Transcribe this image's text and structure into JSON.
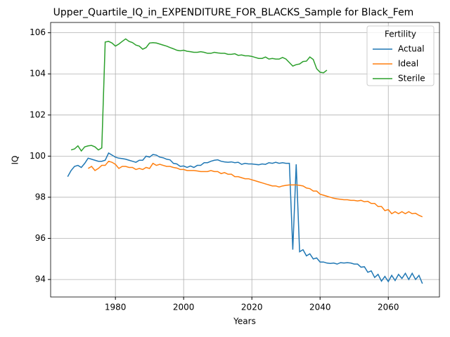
{
  "chart_data": {
    "type": "line",
    "title": "Upper_Quartile_IQ_in_EXPENDITURE_FOR_BLACKS_Sample for Black_Fem",
    "xlabel": "Years",
    "ylabel": "IQ",
    "xlim": [
      1961,
      2075
    ],
    "ylim": [
      93.15,
      106.5
    ],
    "xticks": [
      1980,
      2000,
      2020,
      2040,
      2060
    ],
    "yticks": [
      94,
      96,
      98,
      100,
      102,
      104,
      106
    ],
    "grid": true,
    "legend_title": "Fertility",
    "legend": "upper right",
    "series": [
      {
        "name": "Actual",
        "color": "#1f77b4",
        "x": [
          1966,
          1967,
          1968,
          1969,
          1970,
          1971,
          1972,
          1973,
          1974,
          1975,
          1976,
          1977,
          1978,
          1979,
          1980,
          1981,
          1982,
          1983,
          1984,
          1985,
          1986,
          1987,
          1988,
          1989,
          1990,
          1991,
          1992,
          1993,
          1994,
          1995,
          1996,
          1997,
          1998,
          1999,
          2000,
          2001,
          2002,
          2003,
          2004,
          2005,
          2006,
          2007,
          2008,
          2009,
          2010,
          2011,
          2012,
          2013,
          2014,
          2015,
          2016,
          2017,
          2018,
          2019,
          2020,
          2021,
          2022,
          2023,
          2024,
          2025,
          2026,
          2027,
          2028,
          2029,
          2030,
          2031,
          2032,
          2033,
          2034,
          2035,
          2036,
          2037,
          2038,
          2039,
          2040,
          2041,
          2042,
          2043,
          2044,
          2045,
          2046,
          2047,
          2048,
          2049,
          2050,
          2051,
          2052,
          2053,
          2054,
          2055,
          2056,
          2057,
          2058,
          2059,
          2060,
          2061,
          2062,
          2063,
          2064,
          2065,
          2066,
          2067,
          2068,
          2069,
          2070
        ],
        "values": [
          99.0,
          99.3,
          99.5,
          99.55,
          99.45,
          99.65,
          99.9,
          99.85,
          99.8,
          99.75,
          99.75,
          99.8,
          100.15,
          100.05,
          99.95,
          99.9,
          99.88,
          99.85,
          99.8,
          99.75,
          99.7,
          99.8,
          99.8,
          100.0,
          99.95,
          100.08,
          100.05,
          99.95,
          99.92,
          99.85,
          99.82,
          99.65,
          99.62,
          99.5,
          99.52,
          99.45,
          99.52,
          99.45,
          99.55,
          99.55,
          99.68,
          99.68,
          99.75,
          99.8,
          99.82,
          99.75,
          99.72,
          99.7,
          99.72,
          99.68,
          99.7,
          99.6,
          99.65,
          99.62,
          99.62,
          99.6,
          99.58,
          99.62,
          99.6,
          99.68,
          99.65,
          99.7,
          99.65,
          99.68,
          99.65,
          99.65,
          95.45,
          99.6,
          95.35,
          95.45,
          95.15,
          95.25,
          95.0,
          95.05,
          94.85,
          94.85,
          94.8,
          94.78,
          94.8,
          94.75,
          94.82,
          94.8,
          94.82,
          94.8,
          94.75,
          94.75,
          94.6,
          94.62,
          94.35,
          94.42,
          94.1,
          94.25,
          93.92,
          94.15,
          93.9,
          94.2,
          93.95,
          94.25,
          94.05,
          94.3,
          94.0,
          94.3,
          94.0,
          94.2,
          93.8
        ]
      },
      {
        "name": "Ideal",
        "color": "#ff7f0e",
        "x": [
          1972,
          1973,
          1974,
          1975,
          1976,
          1977,
          1978,
          1979,
          1980,
          1981,
          1982,
          1983,
          1984,
          1985,
          1986,
          1987,
          1988,
          1989,
          1990,
          1991,
          1992,
          1993,
          1994,
          1995,
          1996,
          1997,
          1998,
          1999,
          2000,
          2001,
          2002,
          2003,
          2004,
          2005,
          2006,
          2007,
          2008,
          2009,
          2010,
          2011,
          2012,
          2013,
          2014,
          2015,
          2016,
          2017,
          2018,
          2019,
          2020,
          2021,
          2022,
          2023,
          2024,
          2025,
          2026,
          2027,
          2028,
          2029,
          2030,
          2031,
          2032,
          2033,
          2034,
          2035,
          2036,
          2037,
          2038,
          2039,
          2040,
          2041,
          2042,
          2043,
          2044,
          2045,
          2046,
          2047,
          2048,
          2049,
          2050,
          2051,
          2052,
          2053,
          2054,
          2055,
          2056,
          2057,
          2058,
          2059,
          2060,
          2061,
          2062,
          2063,
          2064,
          2065,
          2066,
          2067,
          2068,
          2069,
          2070
        ],
        "values": [
          99.4,
          99.5,
          99.3,
          99.4,
          99.55,
          99.55,
          99.75,
          99.7,
          99.6,
          99.4,
          99.5,
          99.5,
          99.45,
          99.45,
          99.35,
          99.4,
          99.35,
          99.45,
          99.4,
          99.65,
          99.55,
          99.6,
          99.55,
          99.5,
          99.5,
          99.45,
          99.42,
          99.35,
          99.35,
          99.3,
          99.3,
          99.3,
          99.28,
          99.25,
          99.25,
          99.25,
          99.3,
          99.25,
          99.25,
          99.15,
          99.2,
          99.12,
          99.12,
          99.0,
          99.0,
          98.95,
          98.9,
          98.9,
          98.85,
          98.8,
          98.75,
          98.7,
          98.65,
          98.6,
          98.55,
          98.55,
          98.5,
          98.55,
          98.58,
          98.6,
          98.6,
          98.6,
          98.58,
          98.55,
          98.45,
          98.42,
          98.3,
          98.3,
          98.15,
          98.1,
          98.05,
          98.0,
          97.95,
          97.92,
          97.9,
          97.88,
          97.88,
          97.85,
          97.85,
          97.82,
          97.85,
          97.78,
          97.8,
          97.7,
          97.7,
          97.55,
          97.55,
          97.35,
          97.4,
          97.2,
          97.3,
          97.2,
          97.3,
          97.2,
          97.3,
          97.2,
          97.22,
          97.12,
          97.05
        ]
      },
      {
        "name": "Sterile",
        "color": "#2ca02c",
        "x": [
          1967,
          1968,
          1969,
          1970,
          1971,
          1972,
          1973,
          1974,
          1975,
          1976,
          1977,
          1978,
          1979,
          1980,
          1981,
          1982,
          1983,
          1984,
          1985,
          1986,
          1987,
          1988,
          1989,
          1990,
          1991,
          1992,
          1993,
          1994,
          1995,
          1996,
          1997,
          1998,
          1999,
          2000,
          2001,
          2002,
          2003,
          2004,
          2005,
          2006,
          2007,
          2008,
          2009,
          2010,
          2011,
          2012,
          2013,
          2014,
          2015,
          2016,
          2017,
          2018,
          2019,
          2020,
          2021,
          2022,
          2023,
          2024,
          2025,
          2026,
          2027,
          2028,
          2029,
          2030,
          2031,
          2032,
          2033,
          2034,
          2035,
          2036,
          2037,
          2038,
          2039,
          2040,
          2041,
          2042
        ],
        "values": [
          100.3,
          100.35,
          100.5,
          100.25,
          100.45,
          100.5,
          100.52,
          100.45,
          100.3,
          100.4,
          105.55,
          105.58,
          105.5,
          105.35,
          105.45,
          105.58,
          105.7,
          105.58,
          105.52,
          105.4,
          105.35,
          105.2,
          105.28,
          105.5,
          105.52,
          105.5,
          105.45,
          105.4,
          105.35,
          105.28,
          105.22,
          105.15,
          105.12,
          105.15,
          105.1,
          105.08,
          105.05,
          105.05,
          105.08,
          105.05,
          105.0,
          105.0,
          105.05,
          105.02,
          105.0,
          105.0,
          104.95,
          104.95,
          104.98,
          104.9,
          104.92,
          104.88,
          104.88,
          104.85,
          104.8,
          104.75,
          104.75,
          104.82,
          104.72,
          104.75,
          104.72,
          104.72,
          104.8,
          104.72,
          104.55,
          104.38,
          104.45,
          104.48,
          104.6,
          104.62,
          104.82,
          104.7,
          104.25,
          104.08,
          104.05,
          104.18
        ]
      }
    ]
  }
}
